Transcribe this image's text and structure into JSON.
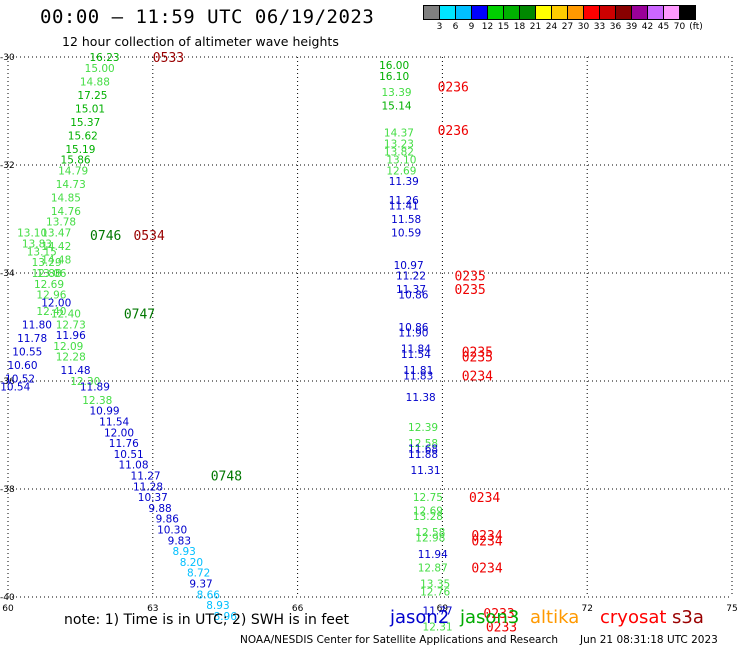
{
  "header": {
    "title": "00:00 – 11:59 UTC 06/19/2023",
    "subtitle": "12 hour collection of altimeter wave heights"
  },
  "colorbar": {
    "labels": [
      "3",
      "6",
      "9",
      "12",
      "15",
      "18",
      "21",
      "24",
      "27",
      "30",
      "33",
      "36",
      "39",
      "42",
      "45",
      "70"
    ],
    "unit": "(ft)",
    "colors": [
      "#808080",
      "#00e5ff",
      "#00bfff",
      "#0000ff",
      "#00d000",
      "#00b000",
      "#008800",
      "#ffff00",
      "#ffcc00",
      "#ff9900",
      "#ff0000",
      "#cc0000",
      "#880000",
      "#990099",
      "#cc66ff",
      "#ff99ff",
      "#000000"
    ]
  },
  "footer": {
    "note": "note: 1) Time is in UTC; 2) SWH is in feet",
    "credit": "NOAA/NESDIS Center for Satellite Applications and Research",
    "timestamp": "Jun 21 08:31:18 UTC 2023"
  },
  "legend": [
    {
      "name": "jason2",
      "color": "#0000cc"
    },
    {
      "name": "jason3",
      "color": "#00aa00"
    },
    {
      "name": "altika",
      "color": "#ff9900"
    },
    {
      "name": "cryosat",
      "color": "#ff0000"
    },
    {
      "name": "s3a",
      "color": "#990000"
    }
  ],
  "chart_data": {
    "type": "scatter",
    "xlim": [
      60,
      75
    ],
    "ylim": [
      -40,
      -30
    ],
    "xticks": [
      "60",
      "63",
      "66",
      "69",
      "72",
      "75"
    ],
    "yticks": [
      "-30",
      "-32",
      "-34",
      "-36",
      "-38",
      "-40"
    ],
    "grid": true,
    "west_track": [
      {
        "x": 62.0,
        "y": -30.0,
        "v": "16.23",
        "c": "#00b000"
      },
      {
        "x": 61.9,
        "y": -30.2,
        "v": "15.00",
        "c": "#44dd44"
      },
      {
        "x": 61.8,
        "y": -30.45,
        "v": "14.88",
        "c": "#44dd44"
      },
      {
        "x": 61.75,
        "y": -30.7,
        "v": "17.25",
        "c": "#00b000"
      },
      {
        "x": 61.7,
        "y": -30.95,
        "v": "15.01",
        "c": "#00b000"
      },
      {
        "x": 61.6,
        "y": -31.2,
        "v": "15.37",
        "c": "#00b000"
      },
      {
        "x": 61.55,
        "y": -31.45,
        "v": "15.62",
        "c": "#00b000"
      },
      {
        "x": 61.5,
        "y": -31.7,
        "v": "15.19",
        "c": "#00b000"
      },
      {
        "x": 61.4,
        "y": -31.9,
        "v": "15.86",
        "c": "#00b000"
      },
      {
        "x": 61.35,
        "y": -32.1,
        "v": "14.79",
        "c": "#44dd44"
      },
      {
        "x": 61.3,
        "y": -32.35,
        "v": "14.73",
        "c": "#44dd44"
      },
      {
        "x": 61.2,
        "y": -32.6,
        "v": "14.85",
        "c": "#44dd44"
      },
      {
        "x": 61.2,
        "y": -32.85,
        "v": "14.76",
        "c": "#44dd44"
      },
      {
        "x": 61.1,
        "y": -33.05,
        "v": "13.78",
        "c": "#44dd44"
      },
      {
        "x": 60.5,
        "y": -33.25,
        "v": "13.10",
        "c": "#44dd44"
      },
      {
        "x": 61.0,
        "y": -33.25,
        "v": "13.47",
        "c": "#44dd44"
      },
      {
        "x": 60.6,
        "y": -33.45,
        "v": "13.83",
        "c": "#44dd44"
      },
      {
        "x": 61.0,
        "y": -33.5,
        "v": "14.42",
        "c": "#44dd44"
      },
      {
        "x": 60.7,
        "y": -33.6,
        "v": "13.15",
        "c": "#44dd44"
      },
      {
        "x": 60.8,
        "y": -33.8,
        "v": "13.29",
        "c": "#44dd44"
      },
      {
        "x": 61.0,
        "y": -33.75,
        "v": "14.48",
        "c": "#44dd44"
      },
      {
        "x": 60.8,
        "y": -34.0,
        "v": "12.88",
        "c": "#44dd44"
      },
      {
        "x": 60.9,
        "y": -34.0,
        "v": "13.06",
        "c": "#44dd44"
      },
      {
        "x": 60.85,
        "y": -34.2,
        "v": "12.69",
        "c": "#44dd44"
      },
      {
        "x": 60.9,
        "y": -34.4,
        "v": "12.96",
        "c": "#44dd44"
      },
      {
        "x": 61.0,
        "y": -34.55,
        "v": "12.00",
        "c": "#0000cc"
      },
      {
        "x": 60.9,
        "y": -34.7,
        "v": "12.40",
        "c": "#44dd44"
      },
      {
        "x": 61.2,
        "y": -34.75,
        "v": "12.40",
        "c": "#44dd44"
      },
      {
        "x": 60.6,
        "y": -34.95,
        "v": "11.80",
        "c": "#0000cc"
      },
      {
        "x": 61.3,
        "y": -34.95,
        "v": "12.73",
        "c": "#44dd44"
      },
      {
        "x": 60.5,
        "y": -35.2,
        "v": "11.78",
        "c": "#0000cc"
      },
      {
        "x": 61.3,
        "y": -35.15,
        "v": "11.96",
        "c": "#0000cc"
      },
      {
        "x": 60.4,
        "y": -35.45,
        "v": "10.55",
        "c": "#0000cc"
      },
      {
        "x": 61.25,
        "y": -35.35,
        "v": "12.09",
        "c": "#44dd44"
      },
      {
        "x": 60.3,
        "y": -35.7,
        "v": "10.60",
        "c": "#0000cc"
      },
      {
        "x": 61.3,
        "y": -35.55,
        "v": "12.28",
        "c": "#44dd44"
      },
      {
        "x": 61.4,
        "y": -35.8,
        "v": "11.48",
        "c": "#0000cc"
      },
      {
        "x": 60.25,
        "y": -35.95,
        "v": "10.52",
        "c": "#0000cc"
      },
      {
        "x": 61.6,
        "y": -36.0,
        "v": "12.30",
        "c": "#44dd44"
      },
      {
        "x": 60.15,
        "y": -36.1,
        "v": "10.54",
        "c": "#0000cc"
      },
      {
        "x": 61.8,
        "y": -36.1,
        "v": "11.89",
        "c": "#0000cc"
      },
      {
        "x": 61.85,
        "y": -36.35,
        "v": "12.38",
        "c": "#44dd44"
      },
      {
        "x": 62.0,
        "y": -36.55,
        "v": "10.99",
        "c": "#0000cc"
      },
      {
        "x": 62.2,
        "y": -36.75,
        "v": "11.54",
        "c": "#0000cc"
      },
      {
        "x": 62.3,
        "y": -36.95,
        "v": "12.00",
        "c": "#0000cc"
      },
      {
        "x": 62.4,
        "y": -37.15,
        "v": "11.76",
        "c": "#0000cc"
      },
      {
        "x": 62.5,
        "y": -37.35,
        "v": "10.51",
        "c": "#0000cc"
      },
      {
        "x": 62.6,
        "y": -37.55,
        "v": "11.08",
        "c": "#0000cc"
      },
      {
        "x": 62.85,
        "y": -37.75,
        "v": "11.27",
        "c": "#0000cc"
      },
      {
        "x": 62.9,
        "y": -37.95,
        "v": "11.28",
        "c": "#0000cc"
      },
      {
        "x": 63.0,
        "y": -38.15,
        "v": "10.37",
        "c": "#0000cc"
      },
      {
        "x": 63.15,
        "y": -38.35,
        "v": "9.88",
        "c": "#0000cc"
      },
      {
        "x": 63.3,
        "y": -38.55,
        "v": "9.86",
        "c": "#0000cc"
      },
      {
        "x": 63.4,
        "y": -38.75,
        "v": "10.30",
        "c": "#0000cc"
      },
      {
        "x": 63.55,
        "y": -38.95,
        "v": "9.83",
        "c": "#0000cc"
      },
      {
        "x": 63.65,
        "y": -39.15,
        "v": "8.93",
        "c": "#00bfff"
      },
      {
        "x": 63.8,
        "y": -39.35,
        "v": "8.20",
        "c": "#00bfff"
      },
      {
        "x": 63.95,
        "y": -39.55,
        "v": "8.72",
        "c": "#00bfff"
      },
      {
        "x": 64.0,
        "y": -39.75,
        "v": "9.37",
        "c": "#0000cc"
      },
      {
        "x": 64.15,
        "y": -39.95,
        "v": "8.66",
        "c": "#00bfff"
      },
      {
        "x": 64.35,
        "y": -40.15,
        "v": "8.93",
        "c": "#00bfff"
      },
      {
        "x": 64.5,
        "y": -40.35,
        "v": "8.96",
        "c": "#00bfff"
      }
    ],
    "east_track": [
      {
        "x": 68.0,
        "y": -30.15,
        "v": "16.00",
        "c": "#00b000"
      },
      {
        "x": 68.0,
        "y": -30.35,
        "v": "16.10",
        "c": "#00b000"
      },
      {
        "x": 68.05,
        "y": -30.65,
        "v": "13.39",
        "c": "#44dd44"
      },
      {
        "x": 68.05,
        "y": -30.9,
        "v": "15.14",
        "c": "#00b000"
      },
      {
        "x": 68.1,
        "y": -31.4,
        "v": "14.37",
        "c": "#44dd44"
      },
      {
        "x": 68.1,
        "y": -31.6,
        "v": "13.23",
        "c": "#44dd44"
      },
      {
        "x": 68.1,
        "y": -31.75,
        "v": "13.82",
        "c": "#44dd44"
      },
      {
        "x": 68.15,
        "y": -31.9,
        "v": "13.10",
        "c": "#44dd44"
      },
      {
        "x": 68.15,
        "y": -32.1,
        "v": "12.69",
        "c": "#44dd44"
      },
      {
        "x": 68.2,
        "y": -32.3,
        "v": "11.39",
        "c": "#0000cc"
      },
      {
        "x": 68.2,
        "y": -32.65,
        "v": "11.26",
        "c": "#0000cc"
      },
      {
        "x": 68.2,
        "y": -32.75,
        "v": "11.41",
        "c": "#0000cc"
      },
      {
        "x": 68.25,
        "y": -33.0,
        "v": "11.58",
        "c": "#0000cc"
      },
      {
        "x": 68.25,
        "y": -33.25,
        "v": "10.59",
        "c": "#0000cc"
      },
      {
        "x": 68.3,
        "y": -33.85,
        "v": "10.97",
        "c": "#0000cc"
      },
      {
        "x": 68.35,
        "y": -34.05,
        "v": "11.22",
        "c": "#0000cc"
      },
      {
        "x": 68.35,
        "y": -34.3,
        "v": "11.37",
        "c": "#0000cc"
      },
      {
        "x": 68.4,
        "y": -34.4,
        "v": "10.86",
        "c": "#0000cc"
      },
      {
        "x": 68.4,
        "y": -35.0,
        "v": "10.86",
        "c": "#0000cc"
      },
      {
        "x": 68.4,
        "y": -35.1,
        "v": "11.90",
        "c": "#0000cc"
      },
      {
        "x": 68.45,
        "y": -35.4,
        "v": "11.84",
        "c": "#0000cc"
      },
      {
        "x": 68.45,
        "y": -35.5,
        "v": "11.54",
        "c": "#0000cc"
      },
      {
        "x": 68.5,
        "y": -35.8,
        "v": "11.81",
        "c": "#0000cc"
      },
      {
        "x": 68.5,
        "y": -35.9,
        "v": "11.83",
        "c": "#0000cc"
      },
      {
        "x": 68.55,
        "y": -36.3,
        "v": "11.38",
        "c": "#0000cc"
      },
      {
        "x": 68.6,
        "y": -36.85,
        "v": "12.39",
        "c": "#44dd44"
      },
      {
        "x": 68.6,
        "y": -37.15,
        "v": "12.58",
        "c": "#44dd44"
      },
      {
        "x": 68.6,
        "y": -37.25,
        "v": "11.68",
        "c": "#0000cc"
      },
      {
        "x": 68.6,
        "y": -37.35,
        "v": "11.88",
        "c": "#0000cc"
      },
      {
        "x": 68.65,
        "y": -37.65,
        "v": "11.31",
        "c": "#0000cc"
      },
      {
        "x": 68.7,
        "y": -38.15,
        "v": "12.75",
        "c": "#44dd44"
      },
      {
        "x": 68.7,
        "y": -38.4,
        "v": "12.69",
        "c": "#44dd44"
      },
      {
        "x": 68.7,
        "y": -38.5,
        "v": "13.28",
        "c": "#44dd44"
      },
      {
        "x": 68.75,
        "y": -38.8,
        "v": "12.58",
        "c": "#44dd44"
      },
      {
        "x": 68.75,
        "y": -38.9,
        "v": "12.98",
        "c": "#44dd44"
      },
      {
        "x": 68.8,
        "y": -39.2,
        "v": "11.94",
        "c": "#0000cc"
      },
      {
        "x": 68.8,
        "y": -39.45,
        "v": "12.87",
        "c": "#44dd44"
      },
      {
        "x": 68.85,
        "y": -39.75,
        "v": "13.35",
        "c": "#44dd44"
      },
      {
        "x": 68.85,
        "y": -39.9,
        "v": "12.76",
        "c": "#44dd44"
      },
      {
        "x": 68.9,
        "y": -40.25,
        "v": "11.77",
        "c": "#0000cc"
      },
      {
        "x": 68.9,
        "y": -40.55,
        "v": "12.31",
        "c": "#44dd44"
      }
    ],
    "time_labels": [
      {
        "x": 63.0,
        "y": -30.0,
        "t": "0533",
        "c": "#990000"
      },
      {
        "x": 61.7,
        "y": -33.3,
        "t": "0746",
        "c": "#007700"
      },
      {
        "x": 62.6,
        "y": -33.3,
        "t": "0534",
        "c": "#990000"
      },
      {
        "x": 62.4,
        "y": -34.75,
        "t": "0747",
        "c": "#007700"
      },
      {
        "x": 64.2,
        "y": -37.75,
        "t": "0748",
        "c": "#007700"
      },
      {
        "x": 68.9,
        "y": -30.55,
        "t": "0236",
        "c": "#ee0000"
      },
      {
        "x": 68.9,
        "y": -31.35,
        "t": "0236",
        "c": "#ee0000"
      },
      {
        "x": 69.25,
        "y": -34.05,
        "t": "0235",
        "c": "#ee0000"
      },
      {
        "x": 69.25,
        "y": -34.3,
        "t": "0235",
        "c": "#ee0000"
      },
      {
        "x": 69.4,
        "y": -35.45,
        "t": "0235",
        "c": "#ee0000"
      },
      {
        "x": 69.4,
        "y": -35.55,
        "t": "0235",
        "c": "#ee0000"
      },
      {
        "x": 69.4,
        "y": -35.9,
        "t": "0234",
        "c": "#ee0000"
      },
      {
        "x": 69.55,
        "y": -38.15,
        "t": "0234",
        "c": "#ee0000"
      },
      {
        "x": 69.6,
        "y": -38.85,
        "t": "0234",
        "c": "#ee0000"
      },
      {
        "x": 69.6,
        "y": -38.95,
        "t": "0234",
        "c": "#ee0000"
      },
      {
        "x": 69.6,
        "y": -39.45,
        "t": "0234",
        "c": "#ee0000"
      },
      {
        "x": 69.85,
        "y": -40.3,
        "t": "0233",
        "c": "#ee0000"
      },
      {
        "x": 69.9,
        "y": -40.55,
        "t": "0233",
        "c": "#ee0000"
      }
    ]
  }
}
